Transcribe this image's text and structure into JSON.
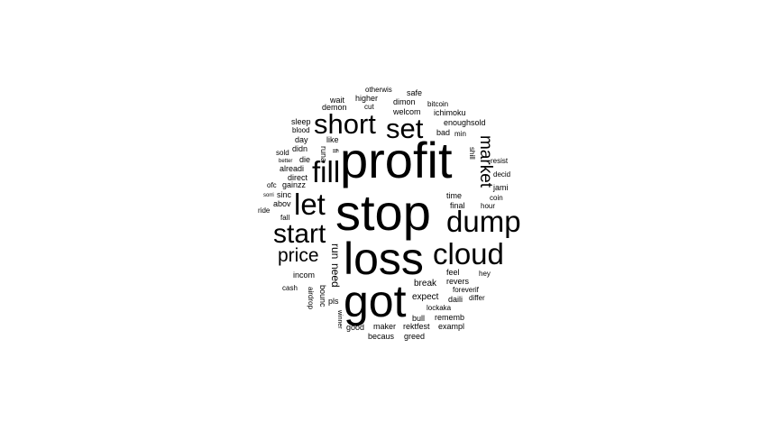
{
  "wordcloud": {
    "words": [
      "profit",
      "stop",
      "loss",
      "got",
      "short",
      "set",
      "fill",
      "let",
      "dump",
      "start",
      "cloud",
      "market",
      "price",
      "run",
      "need",
      "wait",
      "higher",
      "otherwis",
      "safe",
      "demon",
      "cut",
      "dimon",
      "bitcoin",
      "welcom",
      "ichimoku",
      "enoughsold",
      "sleep",
      "blood",
      "bad",
      "min",
      "day",
      "like",
      "runa",
      "fi",
      "didn",
      "shill",
      "sold",
      "die",
      "resist",
      "better",
      "alreadi",
      "decid",
      "direct",
      "ofc",
      "gainzz",
      "jami",
      "sorri",
      "sinc",
      "time",
      "coin",
      "abov",
      "final",
      "hour",
      "ride",
      "fall",
      "incom",
      "feel",
      "hey",
      "break",
      "revers",
      "cash",
      "foreverif",
      "bounc",
      "expect",
      "daili",
      "differ",
      "airdrop",
      "pls",
      "lockaka",
      "winner",
      "bull",
      "rememb",
      "good",
      "maker",
      "rektfest",
      "exampl",
      "becaus",
      "greed"
    ],
    "color": "#000000"
  }
}
